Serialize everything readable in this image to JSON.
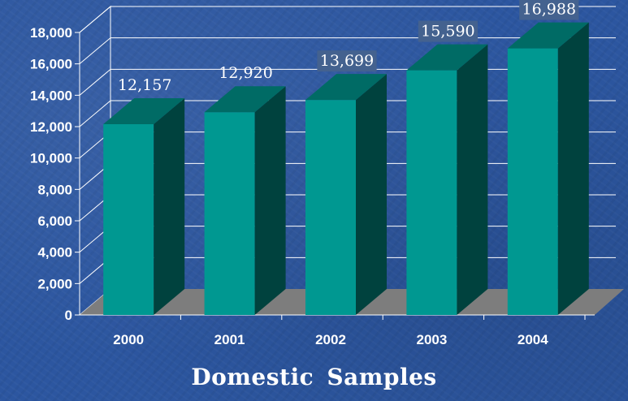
{
  "chart_data": {
    "type": "bar",
    "title": "Domestic Samples",
    "categories": [
      "2000",
      "2001",
      "2002",
      "2003",
      "2004"
    ],
    "values": [
      12157,
      12920,
      13699,
      15590,
      16988
    ],
    "data_labels": [
      "12,157",
      "12,920",
      "13,699",
      "15,590",
      "16,988"
    ],
    "ylim": [
      0,
      18000
    ],
    "yticks": [
      "0",
      "2,000",
      "4,000",
      "6,000",
      "8,000",
      "10,000",
      "12,000",
      "14,000",
      "16,000",
      "18,000"
    ],
    "xlabel": "",
    "ylabel": "",
    "grid": true,
    "style": "3d",
    "colors": {
      "bar_front": "#009891",
      "bar_top": "#006b65",
      "bar_side": "#00423e",
      "floor": "#7d7d7d",
      "grid": "#ffffff",
      "label_box": "#44628f"
    }
  }
}
